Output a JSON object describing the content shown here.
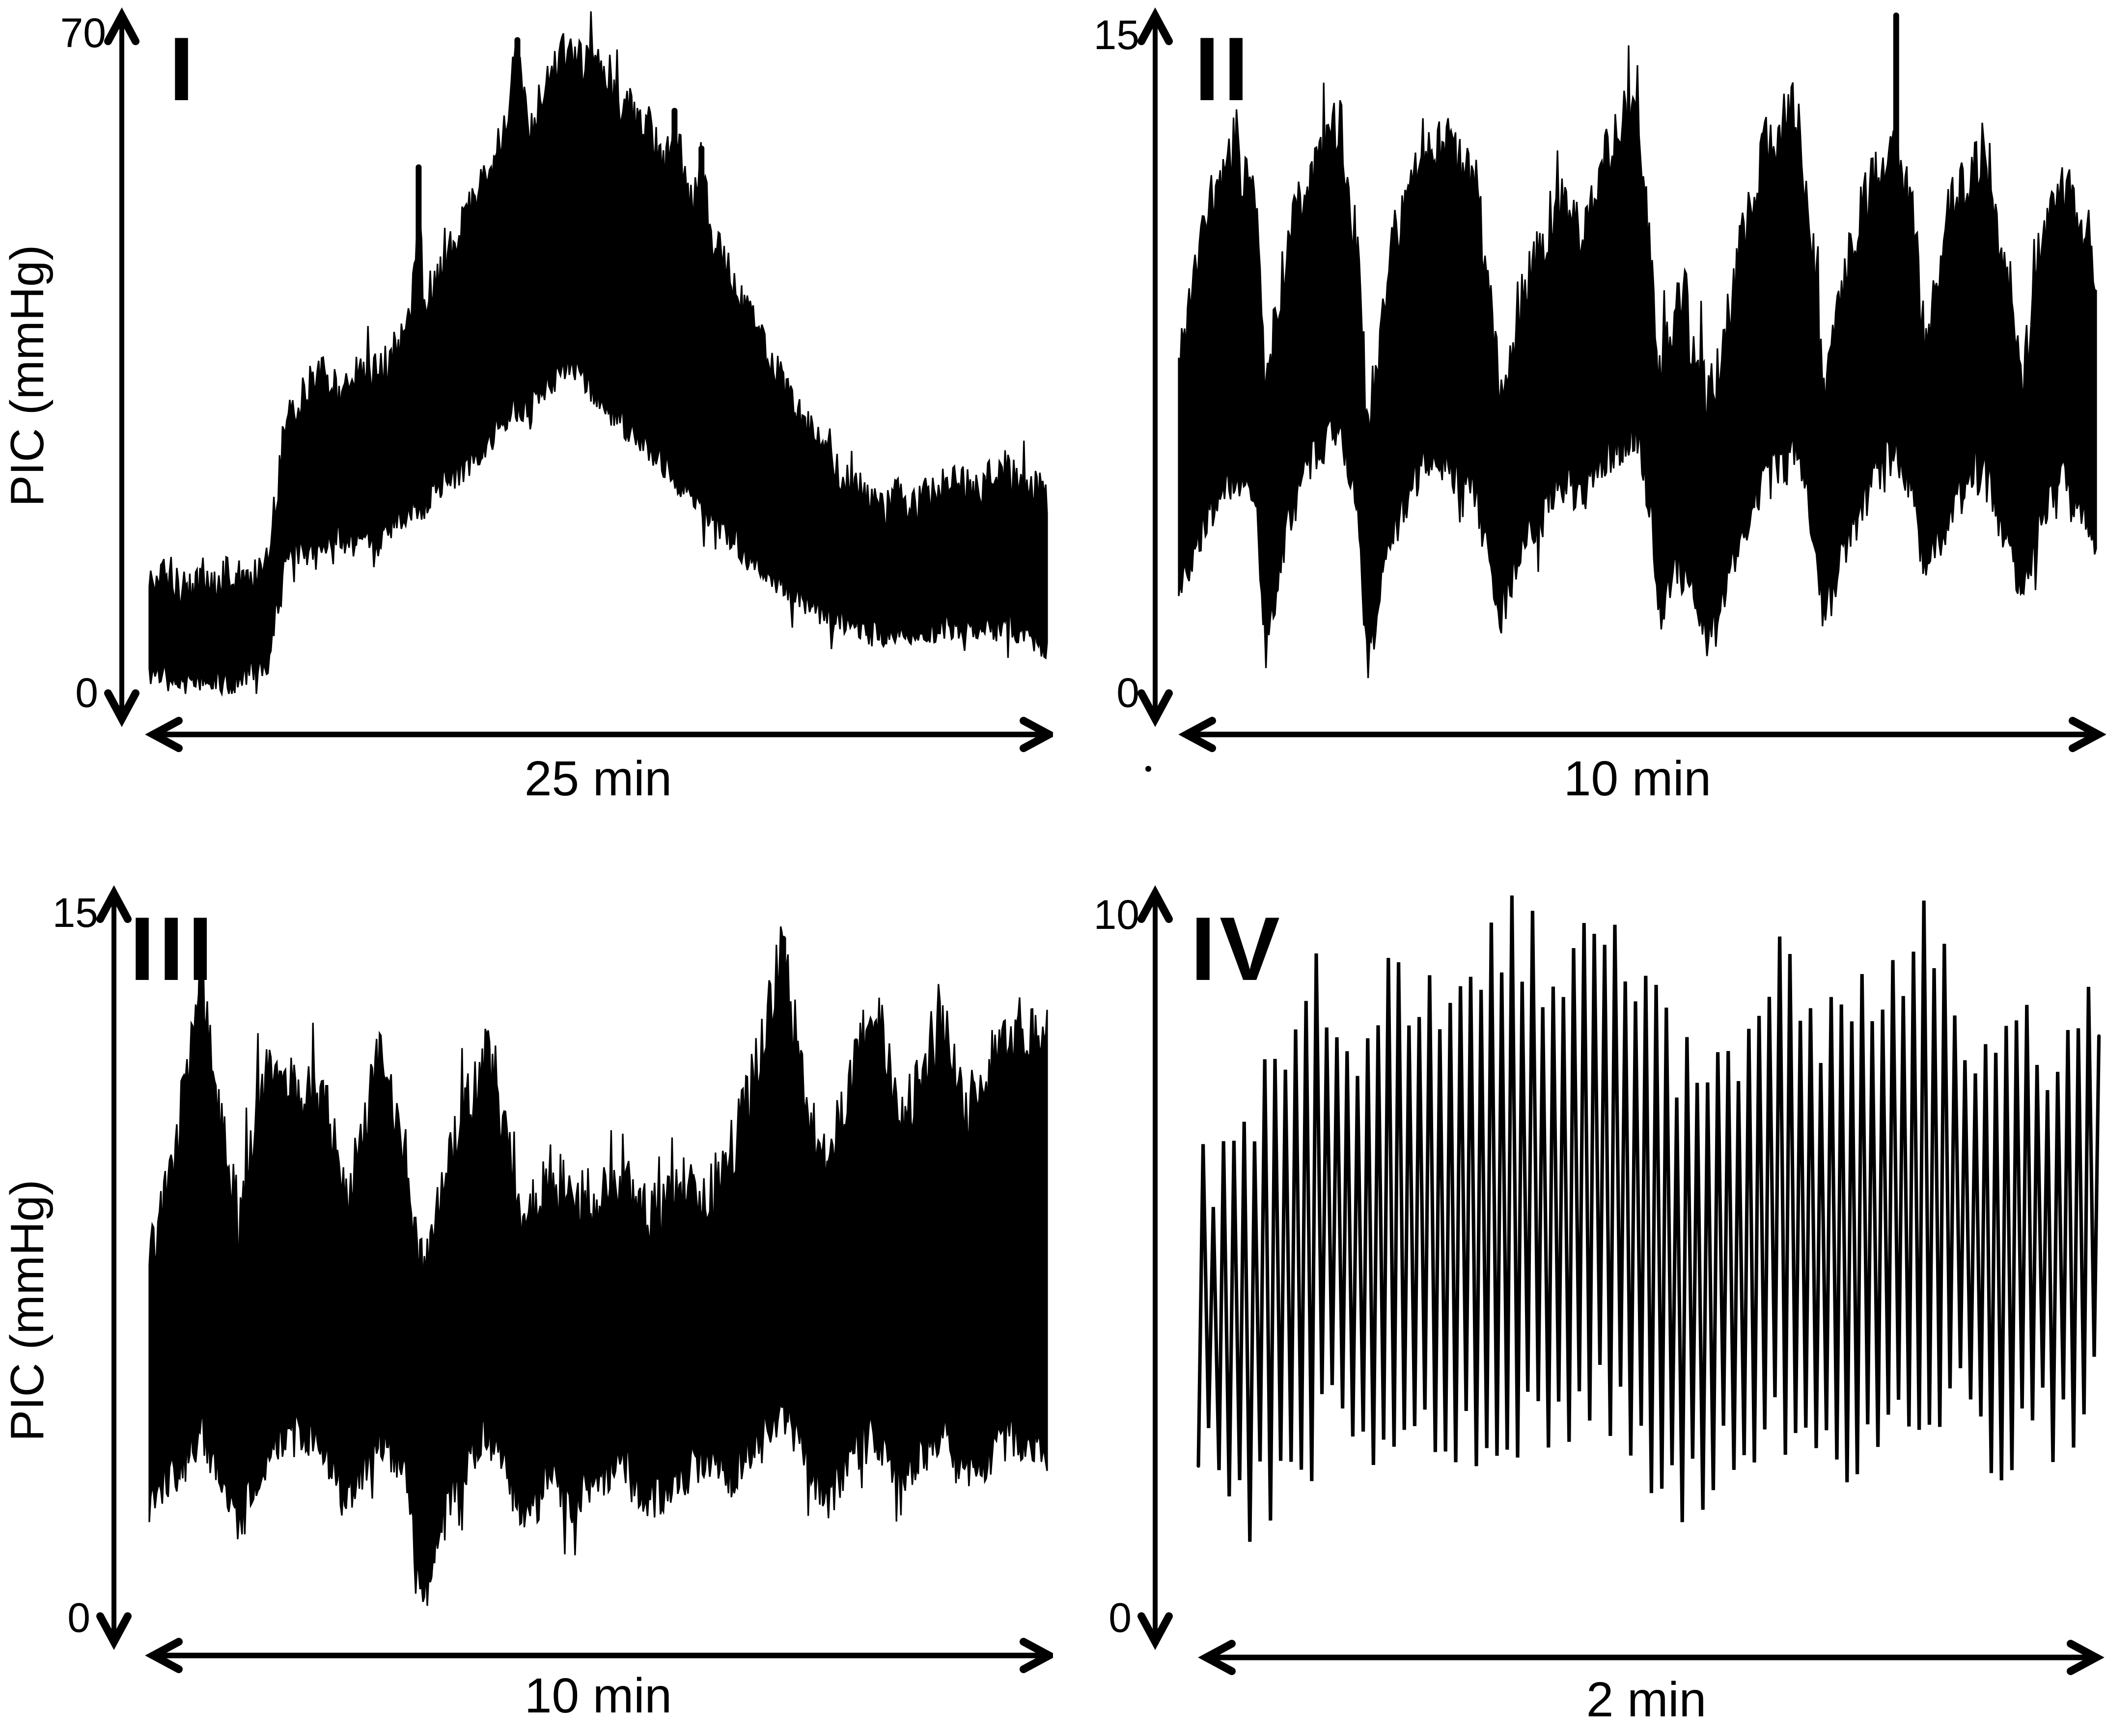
{
  "figure": {
    "background_color": "#ffffff",
    "trace_color": "#000000",
    "description_visible_text_only": true
  },
  "chart_data": [
    {
      "type": "area",
      "panel_label": "I",
      "ylabel": "PIC (mmHg)",
      "xlabel": "25 min",
      "ymax": 70,
      "ymax_label": "70",
      "ymin": 0,
      "ymin_label": "0",
      "x_span_minutes": 25,
      "envelope": [
        [
          0.0,
          2.5,
          11.5
        ],
        [
          0.015,
          2,
          13
        ],
        [
          0.03,
          1.5,
          12
        ],
        [
          0.045,
          1,
          11
        ],
        [
          0.06,
          2,
          12.5
        ],
        [
          0.075,
          1.5,
          11.5
        ],
        [
          0.09,
          1,
          13
        ],
        [
          0.105,
          2,
          12
        ],
        [
          0.12,
          3,
          13.5
        ],
        [
          0.132,
          3.5,
          14
        ],
        [
          0.14,
          8,
          20
        ],
        [
          0.15,
          14,
          28
        ],
        [
          0.165,
          16,
          31
        ],
        [
          0.18,
          15,
          33
        ],
        [
          0.195,
          16,
          34
        ],
        [
          0.21,
          17,
          32
        ],
        [
          0.225,
          16,
          34
        ],
        [
          0.24,
          17,
          35
        ],
        [
          0.255,
          16,
          34
        ],
        [
          0.27,
          18,
          36
        ],
        [
          0.285,
          19,
          38
        ],
        [
          0.295,
          20,
          44
        ],
        [
          0.3,
          20,
          55
        ],
        [
          0.305,
          20,
          42
        ],
        [
          0.32,
          22,
          44
        ],
        [
          0.335,
          23,
          47
        ],
        [
          0.35,
          24,
          50
        ],
        [
          0.365,
          25,
          53
        ],
        [
          0.38,
          27,
          56
        ],
        [
          0.395,
          29,
          60
        ],
        [
          0.405,
          30,
          66
        ],
        [
          0.41,
          30,
          69
        ],
        [
          0.415,
          30,
          64
        ],
        [
          0.425,
          31,
          60
        ],
        [
          0.435,
          32,
          63
        ],
        [
          0.445,
          33,
          66
        ],
        [
          0.455,
          34,
          68
        ],
        [
          0.465,
          35,
          68.5
        ],
        [
          0.475,
          34,
          68
        ],
        [
          0.485,
          33,
          67
        ],
        [
          0.495,
          32,
          69
        ],
        [
          0.505,
          31,
          66
        ],
        [
          0.515,
          30,
          64
        ],
        [
          0.525,
          29,
          62
        ],
        [
          0.535,
          28,
          63
        ],
        [
          0.545,
          27,
          60
        ],
        [
          0.555,
          26,
          61
        ],
        [
          0.565,
          25,
          58
        ],
        [
          0.575,
          24,
          56
        ],
        [
          0.585,
          23,
          62
        ],
        [
          0.595,
          22,
          55
        ],
        [
          0.605,
          21,
          52
        ],
        [
          0.615,
          20,
          58
        ],
        [
          0.625,
          19,
          49
        ],
        [
          0.635,
          18,
          47
        ],
        [
          0.645,
          17,
          45
        ],
        [
          0.655,
          16,
          42
        ],
        [
          0.67,
          15,
          40
        ],
        [
          0.685,
          13,
          37
        ],
        [
          0.7,
          12,
          34
        ],
        [
          0.715,
          11,
          31
        ],
        [
          0.73,
          10,
          29
        ],
        [
          0.745,
          9,
          27
        ],
        [
          0.76,
          8.5,
          25
        ],
        [
          0.775,
          8,
          23
        ],
        [
          0.79,
          7,
          22
        ],
        [
          0.805,
          6.5,
          21
        ],
        [
          0.82,
          6,
          20
        ],
        [
          0.835,
          7,
          21.5
        ],
        [
          0.85,
          6,
          20
        ],
        [
          0.865,
          6.5,
          21
        ],
        [
          0.88,
          7,
          22
        ],
        [
          0.895,
          7.5,
          23
        ],
        [
          0.91,
          7,
          22
        ],
        [
          0.925,
          6.5,
          21.5
        ],
        [
          0.94,
          7,
          23.5
        ],
        [
          0.955,
          7.5,
          24
        ],
        [
          0.97,
          6.5,
          22.5
        ],
        [
          0.985,
          6,
          22
        ],
        [
          1.0,
          5,
          21
        ]
      ],
      "spikes": [
        [
          0.3,
          56
        ],
        [
          0.41,
          69.5
        ],
        [
          0.585,
          62
        ],
        [
          0.615,
          58
        ]
      ],
      "render": {
        "seed": 11,
        "samples": 620,
        "jitter_hi": 2.2,
        "spike_prob": 0.05,
        "spike_amp": 4,
        "jitter_lo": 1.5,
        "dip_prob": 0.04,
        "dip_amp": 3
      }
    },
    {
      "type": "area",
      "panel_label": "II",
      "ylabel": null,
      "xlabel": "10 min",
      "ymax": 15,
      "ymax_label": "15",
      "ymin": 0,
      "ymin_label": "0",
      "x_span_minutes": 10,
      "envelope": [
        [
          0.0,
          2.5,
          7.5
        ],
        [
          0.03,
          4,
          11
        ],
        [
          0.06,
          5,
          12.5
        ],
        [
          0.085,
          4,
          11
        ],
        [
          0.095,
          1.0,
          7
        ],
        [
          0.12,
          4,
          10.5
        ],
        [
          0.15,
          5.5,
          12
        ],
        [
          0.175,
          6,
          13.2
        ],
        [
          0.195,
          4,
          10
        ],
        [
          0.206,
          0.6,
          6
        ],
        [
          0.23,
          3.5,
          10
        ],
        [
          0.26,
          5,
          12
        ],
        [
          0.278,
          5.5,
          12.6
        ],
        [
          0.3,
          5,
          12.2
        ],
        [
          0.323,
          4.5,
          11.9
        ],
        [
          0.345,
          2.5,
          8
        ],
        [
          0.354,
          1.9,
          6.5
        ],
        [
          0.38,
          3.5,
          9.5
        ],
        [
          0.416,
          5,
          11.4
        ],
        [
          0.44,
          4.5,
          10.5
        ],
        [
          0.47,
          5.5,
          12.5
        ],
        [
          0.499,
          6,
          13.6
        ],
        [
          0.515,
          4,
          10
        ],
        [
          0.523,
          2.0,
          7
        ],
        [
          0.545,
          3,
          9
        ],
        [
          0.565,
          2,
          7.5
        ],
        [
          0.585,
          1.3,
          6.5
        ],
        [
          0.61,
          3.5,
          10
        ],
        [
          0.64,
          5,
          12.5
        ],
        [
          0.672,
          5.5,
          13.4
        ],
        [
          0.69,
          4,
          10.5
        ],
        [
          0.703,
          1.7,
          7
        ],
        [
          0.73,
          3.5,
          10
        ],
        [
          0.76,
          5,
          12
        ],
        [
          0.782,
          5.5,
          12.5
        ],
        [
          0.8,
          4.5,
          11
        ],
        [
          0.813,
          2.7,
          8
        ],
        [
          0.84,
          4,
          11
        ],
        [
          0.875,
          5.5,
          12.3
        ],
        [
          0.9,
          3.5,
          9.5
        ],
        [
          0.92,
          2.2,
          7
        ],
        [
          0.94,
          4,
          10.5
        ],
        [
          0.96,
          5,
          11.8
        ],
        [
          0.98,
          4.5,
          11
        ],
        [
          1.0,
          3.5,
          9.5
        ]
      ],
      "spikes": [
        [
          0.782,
          15.5
        ]
      ],
      "render": {
        "seed": 22,
        "samples": 620,
        "jitter_hi": 0.7,
        "spike_prob": 0.06,
        "spike_amp": 1.2,
        "jitter_lo": 0.5,
        "dip_prob": 0.05,
        "dip_amp": 1.0
      }
    },
    {
      "type": "area",
      "panel_label": "III",
      "ylabel": "PIC (mmHg)",
      "xlabel": "10 min",
      "ymax": 15,
      "ymax_label": "15",
      "ymin": 0,
      "ymin_label": "0",
      "x_span_minutes": 10,
      "envelope": [
        [
          0.0,
          2.5,
          7.5
        ],
        [
          0.03,
          3,
          10
        ],
        [
          0.057,
          4,
          13.5
        ],
        [
          0.08,
          3,
          10.5
        ],
        [
          0.1,
          2,
          8.5
        ],
        [
          0.13,
          3.5,
          11.5
        ],
        [
          0.165,
          4,
          11.3
        ],
        [
          0.197,
          3.5,
          10.9
        ],
        [
          0.22,
          2.5,
          9
        ],
        [
          0.257,
          4,
          12
        ],
        [
          0.285,
          3,
          10
        ],
        [
          0.305,
          0.4,
          7
        ],
        [
          0.33,
          2.5,
          9.5
        ],
        [
          0.375,
          4,
          12.1
        ],
        [
          0.4,
          3,
          10
        ],
        [
          0.42,
          2,
          8
        ],
        [
          0.443,
          3,
          9.5
        ],
        [
          0.47,
          2.5,
          9
        ],
        [
          0.5,
          3,
          9
        ],
        [
          0.527,
          3.5,
          9.3
        ],
        [
          0.555,
          2.5,
          8.5
        ],
        [
          0.585,
          3,
          9
        ],
        [
          0.625,
          3.5,
          9.2
        ],
        [
          0.65,
          3,
          10
        ],
        [
          0.68,
          4,
          12
        ],
        [
          0.706,
          4.5,
          14.4
        ],
        [
          0.73,
          3.5,
          11
        ],
        [
          0.755,
          2.5,
          9.5
        ],
        [
          0.78,
          3.5,
          11.5
        ],
        [
          0.81,
          4,
          13.1
        ],
        [
          0.835,
          3,
          10.5
        ],
        [
          0.86,
          3.5,
          11.5
        ],
        [
          0.888,
          4,
          12.9
        ],
        [
          0.91,
          3,
          10.5
        ],
        [
          0.935,
          3.5,
          11.5
        ],
        [
          0.968,
          4,
          12.7
        ],
        [
          1.0,
          3.5,
          12.3
        ]
      ],
      "spikes": [
        [
          0.706,
          14.5
        ]
      ],
      "render": {
        "seed": 33,
        "samples": 620,
        "jitter_hi": 0.7,
        "spike_prob": 0.06,
        "spike_amp": 1.3,
        "jitter_lo": 0.5,
        "dip_prob": 0.05,
        "dip_amp": 1.2
      }
    },
    {
      "type": "line",
      "panel_label": "IV",
      "ylabel": null,
      "xlabel": "2 min",
      "ymax": 10,
      "ymax_label": "10",
      "ymin": 0,
      "ymin_label": "0",
      "x_span_minutes": 2,
      "envelope": [
        [
          0.0,
          2.6,
          6.3
        ],
        [
          0.05,
          1.6,
          7.0
        ],
        [
          0.08,
          2.0,
          7.5
        ],
        [
          0.12,
          2.4,
          9.0
        ],
        [
          0.17,
          3.0,
          8.0
        ],
        [
          0.22,
          2.6,
          9.3
        ],
        [
          0.27,
          2.4,
          8.3
        ],
        [
          0.32,
          2.8,
          9.4
        ],
        [
          0.35,
          2.6,
          9.9
        ],
        [
          0.4,
          2.8,
          8.6
        ],
        [
          0.448,
          3.4,
          10.1
        ],
        [
          0.5,
          2.2,
          8.8
        ],
        [
          0.55,
          1.9,
          7.4
        ],
        [
          0.6,
          2.6,
          8.2
        ],
        [
          0.64,
          2.8,
          9.4
        ],
        [
          0.67,
          2.4,
          8.6
        ],
        [
          0.72,
          2.3,
          8.3
        ],
        [
          0.76,
          3.0,
          8.8
        ],
        [
          0.814,
          2.6,
          10.0
        ],
        [
          0.85,
          3.2,
          8.0
        ],
        [
          0.88,
          2.4,
          7.6
        ],
        [
          0.91,
          2.6,
          8.6
        ],
        [
          0.95,
          2.8,
          7.8
        ],
        [
          0.97,
          2.6,
          9.2
        ],
        [
          1.0,
          3.4,
          8.6
        ]
      ],
      "spikes": [],
      "render": {
        "seed": 44,
        "n_spikes": 88,
        "peak_jitter": 0.7,
        "trough_jitter": 0.6,
        "stroke_width": 1.8
      }
    }
  ]
}
